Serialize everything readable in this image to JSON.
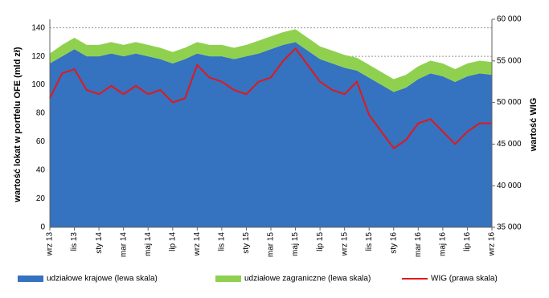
{
  "chart_data": {
    "type": "stacked-area-line",
    "y_label": "wartość lokat w portfelu OFE  (mld zł)",
    "y2_label": "wartość WIG",
    "categories": [
      "wrz 13",
      null,
      "lis 13",
      null,
      "sty 14",
      null,
      "mar 14",
      null,
      "maj 14",
      null,
      "lip 14",
      null,
      "wrz 14",
      null,
      "lis 14",
      null,
      "sty 15",
      null,
      "mar 15",
      null,
      "maj 15",
      null,
      "lip 15",
      null,
      "wrz 15",
      null,
      "lis 15",
      null,
      "sty 16",
      null,
      "mar 16",
      null,
      "maj 16",
      null,
      "lip 16",
      null,
      "wrz 16"
    ],
    "series": [
      {
        "name": "udziałowe krajowe (lewa skala)",
        "color": "#3572bf",
        "values": [
          115,
          120,
          125,
          120,
          120,
          122,
          120,
          122,
          120,
          118,
          115,
          118,
          122,
          120,
          120,
          118,
          120,
          122,
          125,
          128,
          130,
          124,
          118,
          115,
          112,
          110,
          105,
          100,
          95,
          98,
          104,
          108,
          106,
          102,
          106,
          108,
          107
        ]
      },
      {
        "name": "udziałowe zagraniczne (lewa skala)",
        "color": "#8fd14f",
        "values": [
          7,
          8,
          8,
          8,
          8,
          8,
          8,
          8,
          8,
          8,
          8,
          8,
          8,
          8,
          8,
          8,
          8,
          9,
          9,
          9,
          9,
          9,
          9,
          9,
          9,
          9,
          9,
          9,
          9,
          9,
          9,
          9,
          9,
          9,
          9,
          9,
          9
        ]
      },
      {
        "name": "WIG (prawa skala)",
        "color": "#e0191c",
        "axis": "y2",
        "values": [
          50500,
          53500,
          54000,
          51500,
          51000,
          52000,
          51000,
          52000,
          51000,
          51500,
          50000,
          50500,
          54500,
          53000,
          52500,
          51500,
          51000,
          52500,
          53000,
          55000,
          56500,
          54500,
          52500,
          51500,
          51000,
          52500,
          48500,
          46500,
          44500,
          45500,
          47500,
          48000,
          46500,
          45000,
          46500,
          47500,
          47500
        ]
      }
    ],
    "ylim": [
      0,
      146
    ],
    "yticks": [
      0,
      20,
      40,
      60,
      80,
      100,
      120,
      140
    ],
    "y2lim": [
      35000,
      60000
    ],
    "y2ticks": [
      {
        "value": 35000,
        "label": "35 000"
      },
      {
        "value": 40000,
        "label": "40 000"
      },
      {
        "value": 45000,
        "label": "45 000"
      },
      {
        "value": 50000,
        "label": "50 000"
      },
      {
        "value": 55000,
        "label": "55 000"
      },
      {
        "value": 60000,
        "label": "60 000"
      }
    ],
    "grid": true,
    "legend": "bottom"
  }
}
